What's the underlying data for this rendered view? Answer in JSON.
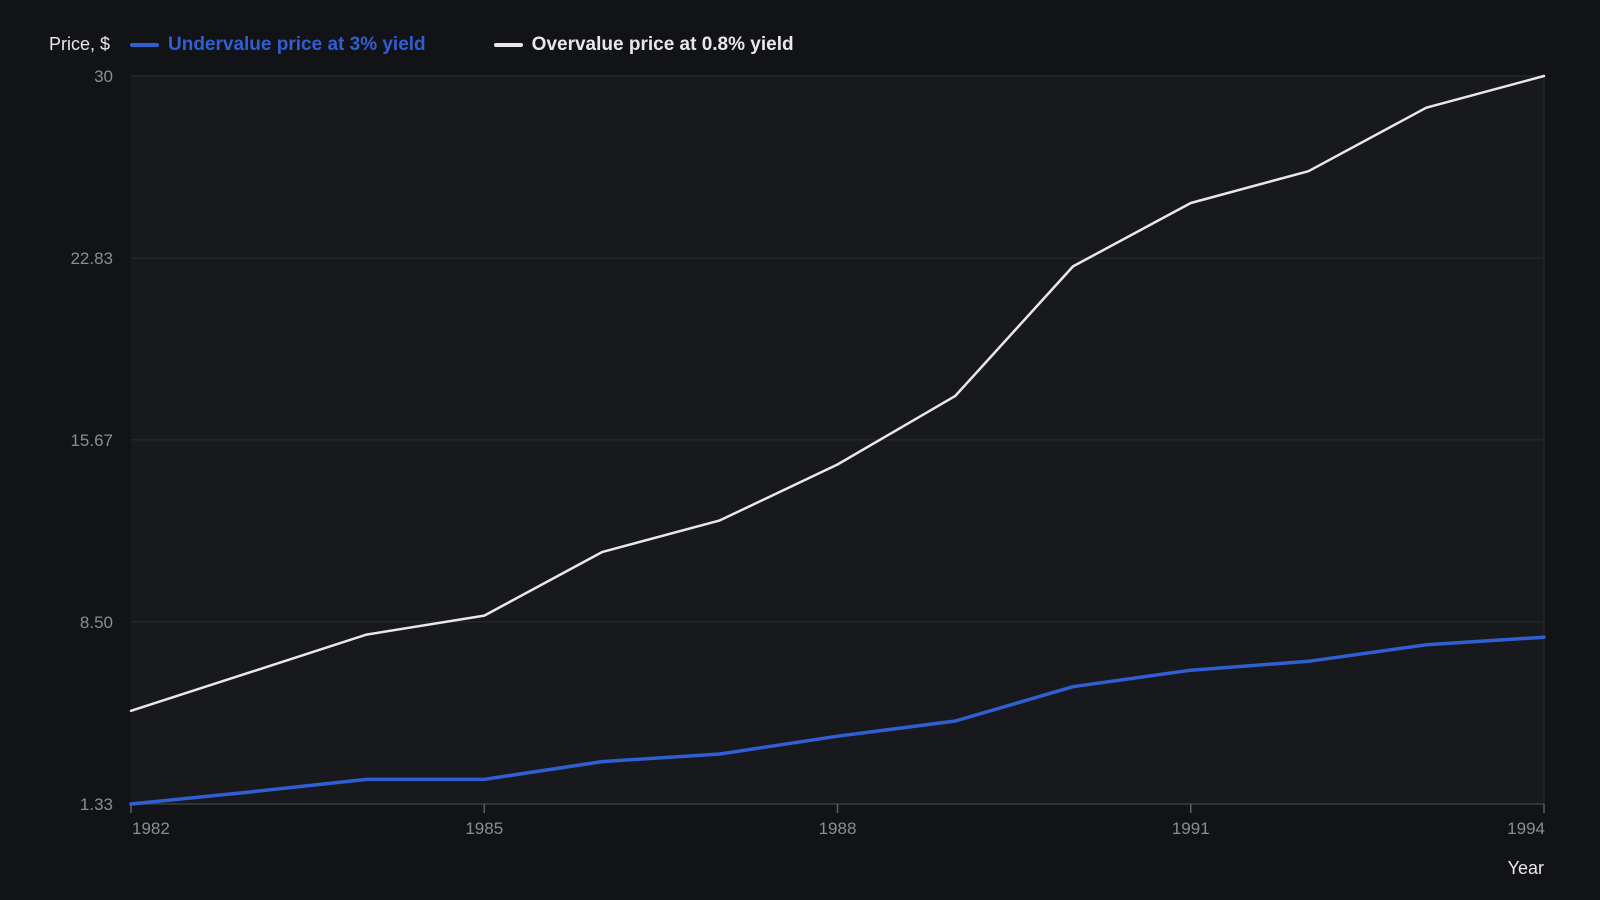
{
  "chart_data": {
    "type": "line",
    "ylabel": "Price, $",
    "xlabel": "Year",
    "x": [
      1982,
      1983,
      1984,
      1985,
      1986,
      1987,
      1988,
      1989,
      1990,
      1991,
      1992,
      1993,
      1994
    ],
    "xticks": [
      "1982",
      "1985",
      "1988",
      "1991",
      "1994"
    ],
    "yticks": [
      "1.33",
      "8.50",
      "15.67",
      "22.83",
      "30"
    ],
    "ylim": [
      1.33,
      30
    ],
    "xlim": [
      1982,
      1994
    ],
    "grid": true,
    "legend_position": "top-left",
    "series": [
      {
        "name": "Undervalue price at 3% yield",
        "color": "#2f5fd3",
        "values": [
          1.33,
          1.8,
          2.3,
          2.3,
          3.0,
          3.3,
          4.0,
          4.6,
          5.95,
          6.6,
          6.95,
          7.6,
          7.9
        ]
      },
      {
        "name": "Overvalue price at 0.8% yield",
        "color": "#e8e8e8",
        "values": [
          5.0,
          6.5,
          8.0,
          8.75,
          11.25,
          12.5,
          14.7,
          17.4,
          22.5,
          25.0,
          26.25,
          28.75,
          30.0
        ]
      }
    ],
    "colors": {
      "background": "#111317",
      "plot_background": "#17191d",
      "grid": "#2a2d33",
      "tick_text": "#8a8d93",
      "label_text": "#e8e8e8"
    }
  }
}
